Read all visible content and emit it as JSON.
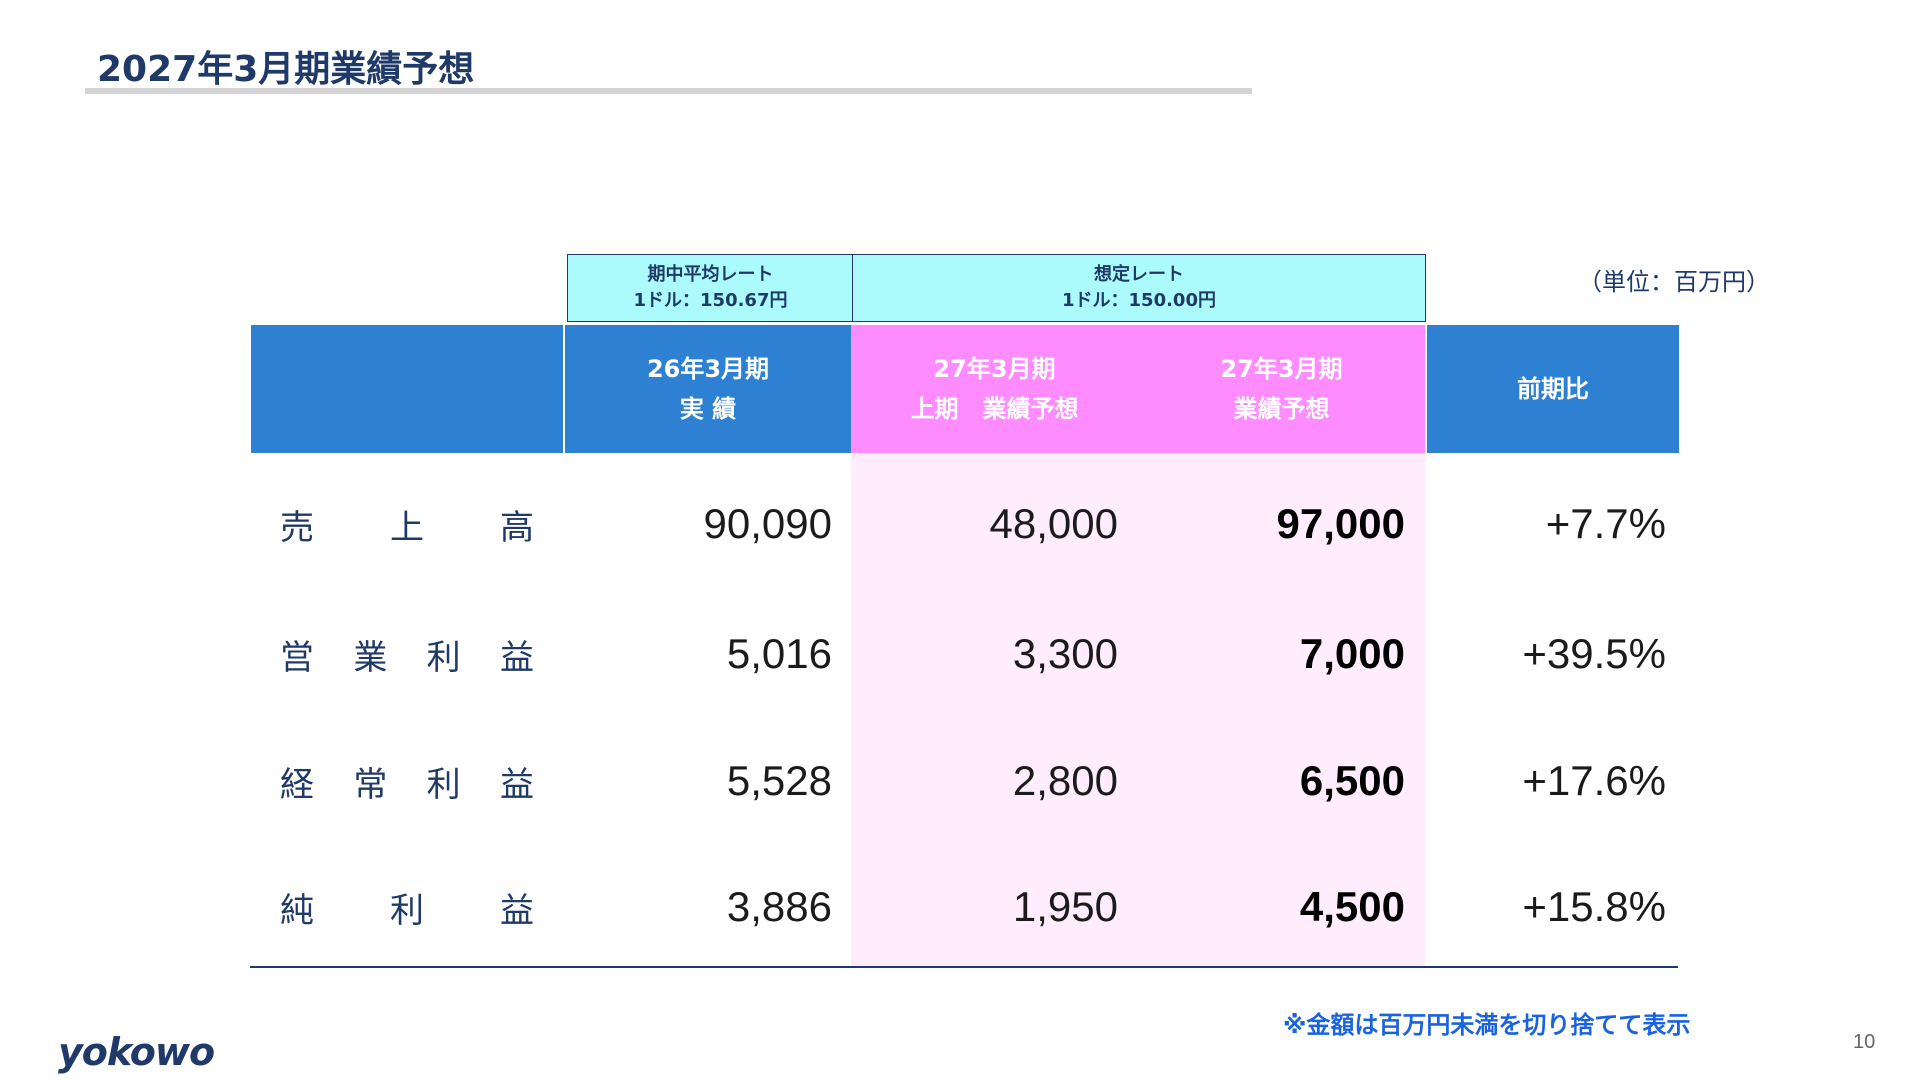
{
  "title": "2027年3月期業績予想",
  "unit": "（単位：百万円）",
  "rates": {
    "actual": {
      "line1": "期中平均レート",
      "line2": "1ドル：150.67円"
    },
    "assumed": {
      "line1": "想定レート",
      "line2": "1ドル：150.00円"
    }
  },
  "headers": {
    "fy26_line1": "26年3月期",
    "fy26_line2": "実 績",
    "h1_line1": "27年3月期",
    "h1_line2": "上期　業績予想",
    "fy27_line1": "27年3月期",
    "fy27_line2": "業績予想",
    "yoy": "前期比"
  },
  "rows": [
    {
      "label": [
        "売",
        "上",
        "高"
      ],
      "fy26": "90,090",
      "h1": "48,000",
      "fy27": "97,000",
      "yoy": "+7.7%"
    },
    {
      "label": [
        "営",
        "業",
        "利",
        "益"
      ],
      "fy26": "5,016",
      "h1": "3,300",
      "fy27": "7,000",
      "yoy": "+39.5%"
    },
    {
      "label": [
        "経",
        "常",
        "利",
        "益"
      ],
      "fy26": "5,528",
      "h1": "2,800",
      "fy27": "6,500",
      "yoy": "+17.6%"
    },
    {
      "label": [
        "純",
        "利",
        "益"
      ],
      "fy26": "3,886",
      "h1": "1,950",
      "fy27": "4,500",
      "yoy": "+15.8%"
    }
  ],
  "note": "※金額は百万円未満を切り捨てて表示",
  "logo": "yokowo",
  "page_number": "10",
  "colors": {
    "header_blue": "#2e80d3",
    "header_pink": "#ff8cff",
    "rate_box": "#abfbfc",
    "forecast_column_bg": "#ffedfe",
    "navy": "#1f3a68",
    "note_blue": "#1a63e0"
  }
}
